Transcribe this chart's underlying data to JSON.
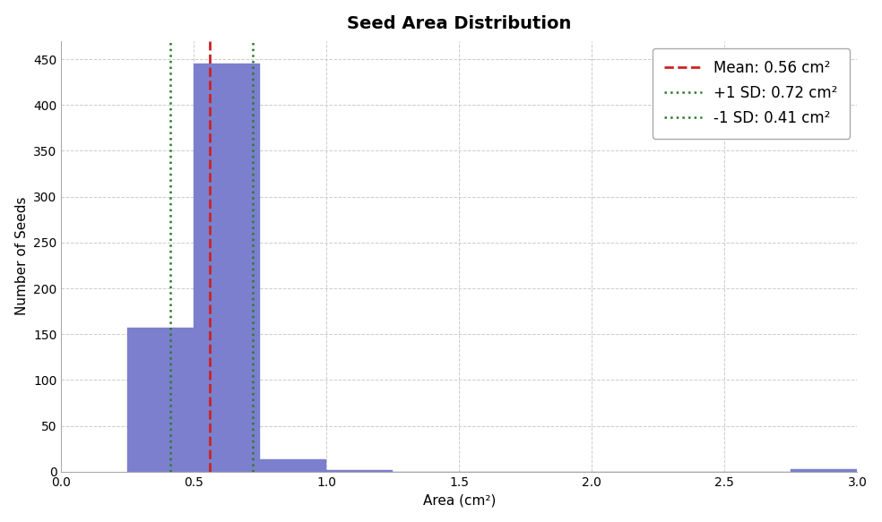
{
  "title": "Seed Area Distribution",
  "xlabel": "Area (cm²)",
  "ylabel": "Number of Seeds",
  "mean": 0.56,
  "plus_sd": 0.72,
  "minus_sd": 0.41,
  "bar_color": "#7b7fcd",
  "bar_edgecolor": "#7b7fcd",
  "mean_color": "#cc2222",
  "sd_plus_color": "#2d7a2d",
  "sd_minus_color": "#2d7a2d",
  "xlim": [
    0.0,
    3.0
  ],
  "ylim": [
    0,
    470
  ],
  "bin_edges": [
    0.25,
    0.5,
    0.75,
    1.0,
    1.25,
    1.5,
    1.75,
    2.0,
    2.25,
    2.5,
    2.75,
    3.0
  ],
  "bin_counts": [
    157,
    445,
    14,
    2,
    0,
    0,
    0,
    0,
    0,
    0,
    3,
    0
  ],
  "yticks": [
    0,
    50,
    100,
    150,
    200,
    250,
    300,
    350,
    400,
    450
  ],
  "xticks": [
    0.0,
    0.5,
    1.0,
    1.5,
    2.0,
    2.5,
    3.0
  ],
  "title_fontsize": 14,
  "label_fontsize": 11,
  "tick_fontsize": 10,
  "legend_fontsize": 12,
  "background_color": "#ffffff",
  "grid_color": "#cccccc",
  "grid_linestyle": "--",
  "bar_width": 0.25,
  "figsize": [
    9.84,
    5.83
  ],
  "dpi": 100
}
